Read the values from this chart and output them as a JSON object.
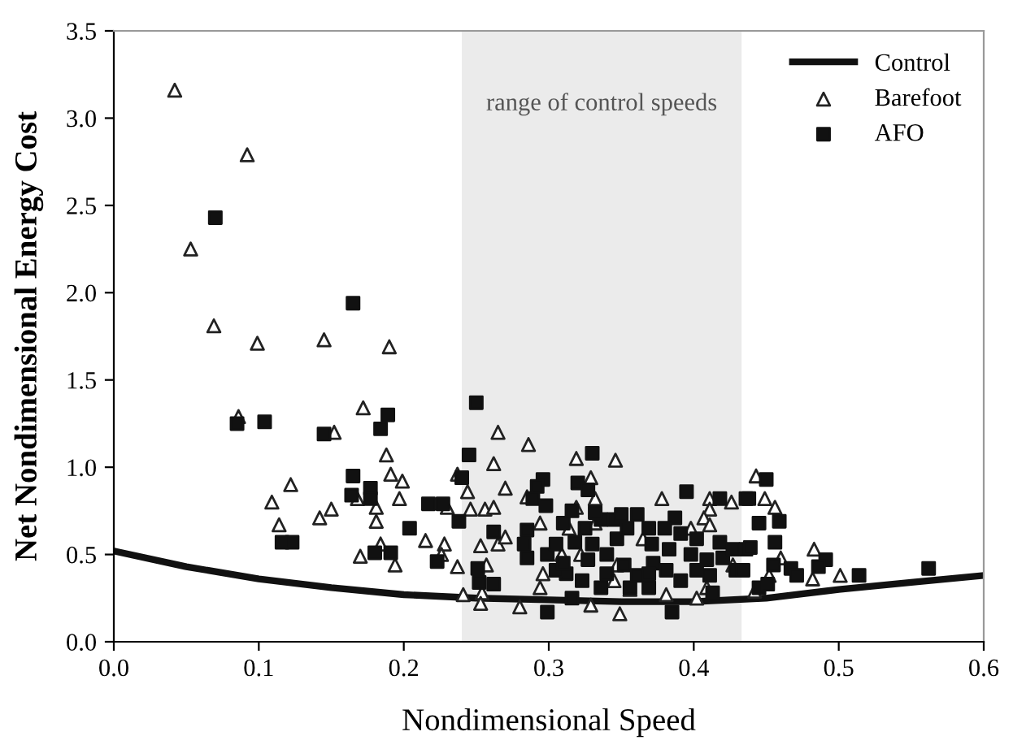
{
  "chart_data": {
    "type": "scatter",
    "xlabel": "Nondimensional Speed",
    "ylabel": "Net Nondimensional Energy Cost",
    "xlim": [
      0,
      0.6
    ],
    "ylim": [
      0,
      3.5
    ],
    "xticks": [
      {
        "value": 0,
        "label": "0.0"
      },
      {
        "value": 0.1,
        "label": "0.1"
      },
      {
        "value": 0.2,
        "label": "0.2"
      },
      {
        "value": 0.3,
        "label": "0.3"
      },
      {
        "value": 0.4,
        "label": "0.4"
      },
      {
        "value": 0.5,
        "label": "0.5"
      },
      {
        "value": 0.6,
        "label": "0.6"
      }
    ],
    "yticks": [
      {
        "value": 0,
        "label": "0.0"
      },
      {
        "value": 0.5,
        "label": "0.5"
      },
      {
        "value": 1,
        "label": "1.0"
      },
      {
        "value": 1.5,
        "label": "1.5"
      },
      {
        "value": 2,
        "label": "2.0"
      },
      {
        "value": 2.5,
        "label": "2.5"
      },
      {
        "value": 3,
        "label": "3.0"
      },
      {
        "value": 3.5,
        "label": "3.5"
      }
    ],
    "bands": [
      {
        "axis": "x",
        "from": 0.24,
        "to": 0.433,
        "label": "range of control speeds",
        "color": "#ebebeb"
      }
    ],
    "grid": false,
    "legend": "top right",
    "series": [
      {
        "name": "Control",
        "type": "line",
        "color": "#111111",
        "marker": "none",
        "line_style": "solid",
        "x": [
          0,
          0.05,
          0.1,
          0.15,
          0.2,
          0.25,
          0.3,
          0.35,
          0.4,
          0.45,
          0.5,
          0.55,
          0.6
        ],
        "values": [
          0.52,
          0.43,
          0.36,
          0.31,
          0.27,
          0.25,
          0.24,
          0.23,
          0.23,
          0.25,
          0.3,
          0.34,
          0.38
        ]
      },
      {
        "name": "Barefoot",
        "color": "#222222",
        "marker": "triangle",
        "x": [
          0.042,
          0.092,
          0.053,
          0.069,
          0.099,
          0.145,
          0.19,
          0.086,
          0.172,
          0.152,
          0.188,
          0.191,
          0.199,
          0.168,
          0.181,
          0.181,
          0.197,
          0.122,
          0.109,
          0.114,
          0.142,
          0.15,
          0.17,
          0.184,
          0.194,
          0.23,
          0.215,
          0.228,
          0.226,
          0.237,
          0.237,
          0.241,
          0.265,
          0.286,
          0.262,
          0.244,
          0.246,
          0.256,
          0.262,
          0.265,
          0.27,
          0.253,
          0.257,
          0.254,
          0.253,
          0.28,
          0.329,
          0.349,
          0.319,
          0.346,
          0.329,
          0.332,
          0.285,
          0.27,
          0.378,
          0.411,
          0.426,
          0.411,
          0.407,
          0.411,
          0.294,
          0.319,
          0.296,
          0.294,
          0.309,
          0.322,
          0.345,
          0.356,
          0.365,
          0.381,
          0.398,
          0.402,
          0.409,
          0.427,
          0.314,
          0.332,
          0.347,
          0.443,
          0.449,
          0.456,
          0.46,
          0.483,
          0.482,
          0.501,
          0.442,
          0.452
        ],
        "values": [
          3.16,
          2.79,
          2.25,
          1.81,
          1.71,
          1.73,
          1.69,
          1.29,
          1.34,
          1.2,
          1.07,
          0.96,
          0.92,
          0.82,
          0.77,
          0.69,
          0.82,
          0.9,
          0.8,
          0.67,
          0.71,
          0.76,
          0.49,
          0.56,
          0.44,
          0.77,
          0.58,
          0.56,
          0.5,
          0.43,
          0.96,
          0.27,
          1.2,
          1.13,
          1.02,
          0.86,
          0.76,
          0.76,
          0.77,
          0.56,
          0.6,
          0.55,
          0.44,
          0.28,
          0.22,
          0.2,
          0.21,
          0.16,
          1.05,
          1.04,
          0.94,
          0.82,
          0.83,
          0.88,
          0.82,
          0.82,
          0.8,
          0.76,
          0.71,
          0.67,
          0.68,
          0.77,
          0.39,
          0.31,
          0.5,
          0.5,
          0.35,
          0.3,
          0.59,
          0.27,
          0.65,
          0.25,
          0.31,
          0.44,
          0.65,
          0.68,
          0.44,
          0.95,
          0.82,
          0.77,
          0.48,
          0.53,
          0.36,
          0.38,
          0.29,
          0.38
        ]
      },
      {
        "name": "AFO",
        "color": "#111111",
        "marker": "square",
        "x": [
          0.07,
          0.165,
          0.085,
          0.104,
          0.189,
          0.184,
          0.145,
          0.165,
          0.164,
          0.177,
          0.177,
          0.116,
          0.123,
          0.204,
          0.18,
          0.191,
          0.217,
          0.227,
          0.223,
          0.238,
          0.24,
          0.25,
          0.245,
          0.262,
          0.251,
          0.252,
          0.262,
          0.299,
          0.385,
          0.33,
          0.296,
          0.292,
          0.32,
          0.327,
          0.289,
          0.298,
          0.395,
          0.418,
          0.436,
          0.387,
          0.285,
          0.283,
          0.285,
          0.299,
          0.31,
          0.316,
          0.312,
          0.316,
          0.323,
          0.325,
          0.33,
          0.336,
          0.34,
          0.336,
          0.345,
          0.347,
          0.352,
          0.354,
          0.361,
          0.361,
          0.369,
          0.371,
          0.372,
          0.369,
          0.38,
          0.383,
          0.381,
          0.391,
          0.391,
          0.398,
          0.402,
          0.409,
          0.411,
          0.418,
          0.42,
          0.427,
          0.429,
          0.413,
          0.402,
          0.369,
          0.356,
          0.34,
          0.327,
          0.305,
          0.305,
          0.318,
          0.35,
          0.332,
          0.31,
          0.436,
          0.45,
          0.438,
          0.445,
          0.459,
          0.456,
          0.439,
          0.455,
          0.467,
          0.471,
          0.491,
          0.486,
          0.514,
          0.562,
          0.445,
          0.451,
          0.434
        ],
        "values": [
          2.43,
          1.94,
          1.25,
          1.26,
          1.3,
          1.22,
          1.19,
          0.95,
          0.84,
          0.88,
          0.82,
          0.57,
          0.57,
          0.65,
          0.51,
          0.51,
          0.79,
          0.79,
          0.46,
          0.69,
          0.94,
          1.37,
          1.07,
          0.63,
          0.42,
          0.34,
          0.33,
          0.17,
          0.17,
          1.08,
          0.93,
          0.89,
          0.91,
          0.87,
          0.82,
          0.78,
          0.86,
          0.82,
          0.82,
          0.71,
          0.64,
          0.56,
          0.48,
          0.5,
          0.68,
          0.75,
          0.39,
          0.25,
          0.35,
          0.65,
          0.56,
          0.7,
          0.5,
          0.31,
          0.7,
          0.59,
          0.44,
          0.65,
          0.73,
          0.38,
          0.65,
          0.56,
          0.45,
          0.31,
          0.65,
          0.53,
          0.41,
          0.62,
          0.35,
          0.5,
          0.59,
          0.47,
          0.38,
          0.57,
          0.48,
          0.53,
          0.41,
          0.28,
          0.41,
          0.39,
          0.31,
          0.39,
          0.47,
          0.56,
          0.41,
          0.57,
          0.73,
          0.74,
          0.45,
          0.53,
          0.93,
          0.82,
          0.68,
          0.69,
          0.57,
          0.54,
          0.44,
          0.42,
          0.38,
          0.47,
          0.43,
          0.38,
          0.42,
          0.31,
          0.33,
          0.41
        ]
      }
    ]
  }
}
